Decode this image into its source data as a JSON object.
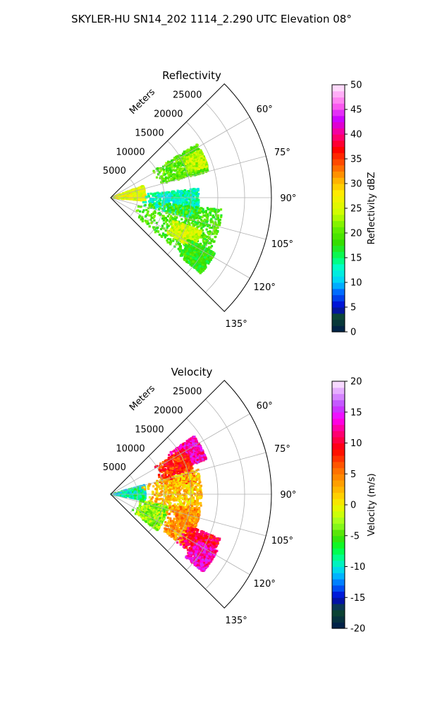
{
  "figure_title": "SKYLER-HU  SN14_202  1114_2.290 UTC Elevation 08°",
  "chart_data": [
    {
      "type": "polar-sector-radar",
      "title": "Reflectivity",
      "radial_label": "Meters",
      "radial_ticks": [
        "5000",
        "10000",
        "15000",
        "20000",
        "25000"
      ],
      "radial_tick_values": [
        5000,
        10000,
        15000,
        20000,
        25000
      ],
      "rlim": [
        0,
        30000
      ],
      "azimuth_range_deg": [
        45,
        135
      ],
      "azimuth_ticks": [
        "60°",
        "75°",
        "90°",
        "105°",
        "120°",
        "135°"
      ],
      "azimuth_tick_values": [
        60,
        75,
        90,
        105,
        120,
        135
      ],
      "grid": true,
      "colorbar": {
        "label": "Reflectivity dBZ",
        "ticks": [
          "0",
          "5",
          "10",
          "15",
          "20",
          "25",
          "30",
          "35",
          "40",
          "45",
          "50"
        ],
        "range": [
          0,
          50
        ],
        "stops": [
          {
            "v": 0,
            "c": "#001a4d"
          },
          {
            "v": 3,
            "c": "#0d4a2e"
          },
          {
            "v": 5,
            "c": "#0000cc"
          },
          {
            "v": 8,
            "c": "#0066ff"
          },
          {
            "v": 10,
            "c": "#00ccff"
          },
          {
            "v": 13,
            "c": "#00ffcc"
          },
          {
            "v": 15,
            "c": "#00ff66"
          },
          {
            "v": 18,
            "c": "#33dd00"
          },
          {
            "v": 21,
            "c": "#66ee00"
          },
          {
            "v": 24,
            "c": "#ccff00"
          },
          {
            "v": 28,
            "c": "#ffee00"
          },
          {
            "v": 31,
            "c": "#ffaa00"
          },
          {
            "v": 34,
            "c": "#ff5500"
          },
          {
            "v": 37,
            "c": "#ff0000"
          },
          {
            "v": 40,
            "c": "#ff0088"
          },
          {
            "v": 43,
            "c": "#cc00ff"
          },
          {
            "v": 46,
            "c": "#ff66ee"
          },
          {
            "v": 50,
            "c": "#ffeeff"
          }
        ]
      },
      "echo_regions": [
        {
          "az": [
            58,
            75
          ],
          "r": [
            9000,
            19000
          ],
          "value": 20
        },
        {
          "az": [
            62,
            72
          ],
          "r": [
            15000,
            19000
          ],
          "value": 24
        },
        {
          "az": [
            70,
            95
          ],
          "r": [
            0,
            6500
          ],
          "value": 26
        },
        {
          "az": [
            84,
            104
          ],
          "r": [
            6000,
            16500
          ],
          "value": 13
        },
        {
          "az": [
            96,
            128
          ],
          "r": [
            5000,
            21000
          ],
          "value": 19
        },
        {
          "az": [
            110,
            122
          ],
          "r": [
            12000,
            18000
          ],
          "value": 25
        },
        {
          "az": [
            118,
            130
          ],
          "r": [
            16000,
            22000
          ],
          "value": 18
        }
      ]
    },
    {
      "type": "polar-sector-radar",
      "title": "Velocity",
      "radial_label": "Meters",
      "radial_ticks": [
        "5000",
        "10000",
        "15000",
        "20000",
        "25000"
      ],
      "radial_tick_values": [
        5000,
        10000,
        15000,
        20000,
        25000
      ],
      "rlim": [
        0,
        30000
      ],
      "azimuth_range_deg": [
        45,
        135
      ],
      "azimuth_ticks": [
        "60°",
        "75°",
        "90°",
        "105°",
        "120°",
        "135°"
      ],
      "azimuth_tick_values": [
        60,
        75,
        90,
        105,
        120,
        135
      ],
      "grid": true,
      "colorbar": {
        "label": "Velocity (m/s)",
        "ticks": [
          "-20",
          "-15",
          "-10",
          "-5",
          "0",
          "5",
          "10",
          "15",
          "20"
        ],
        "range": [
          -20,
          20
        ],
        "stops": [
          {
            "v": -20,
            "c": "#001a4d"
          },
          {
            "v": -17,
            "c": "#0d4a2e"
          },
          {
            "v": -15,
            "c": "#0000cc"
          },
          {
            "v": -13,
            "c": "#0066ff"
          },
          {
            "v": -11,
            "c": "#00ccff"
          },
          {
            "v": -9,
            "c": "#00ffaa"
          },
          {
            "v": -7,
            "c": "#00ff33"
          },
          {
            "v": -5,
            "c": "#44dd00"
          },
          {
            "v": -3,
            "c": "#99ff22"
          },
          {
            "v": -1,
            "c": "#ddff00"
          },
          {
            "v": 1,
            "c": "#ffdd00"
          },
          {
            "v": 3,
            "c": "#ffaa00"
          },
          {
            "v": 6,
            "c": "#ff6600"
          },
          {
            "v": 9,
            "c": "#ff0000"
          },
          {
            "v": 12,
            "c": "#ff0088"
          },
          {
            "v": 14,
            "c": "#ff00ff"
          },
          {
            "v": 16,
            "c": "#bb44ff"
          },
          {
            "v": 20,
            "c": "#ffeeff"
          }
        ]
      },
      "echo_regions": [
        {
          "az": [
            55,
            70
          ],
          "r": [
            13000,
            19000
          ],
          "value": 13
        },
        {
          "az": [
            58,
            82
          ],
          "r": [
            9000,
            16000
          ],
          "value": 8
        },
        {
          "az": [
            75,
            100
          ],
          "r": [
            0,
            6500
          ],
          "value": -9
        },
        {
          "az": [
            74,
            106
          ],
          "r": [
            6000,
            17000
          ],
          "value": 2
        },
        {
          "az": [
            102,
            128
          ],
          "r": [
            5000,
            11000
          ],
          "value": -3
        },
        {
          "az": [
            100,
            125
          ],
          "r": [
            11000,
            17000
          ],
          "value": 4
        },
        {
          "az": [
            112,
            126
          ],
          "r": [
            15000,
            22000
          ],
          "value": 10
        },
        {
          "az": [
            118,
            130
          ],
          "r": [
            18000,
            22500
          ],
          "value": 13
        }
      ]
    }
  ]
}
